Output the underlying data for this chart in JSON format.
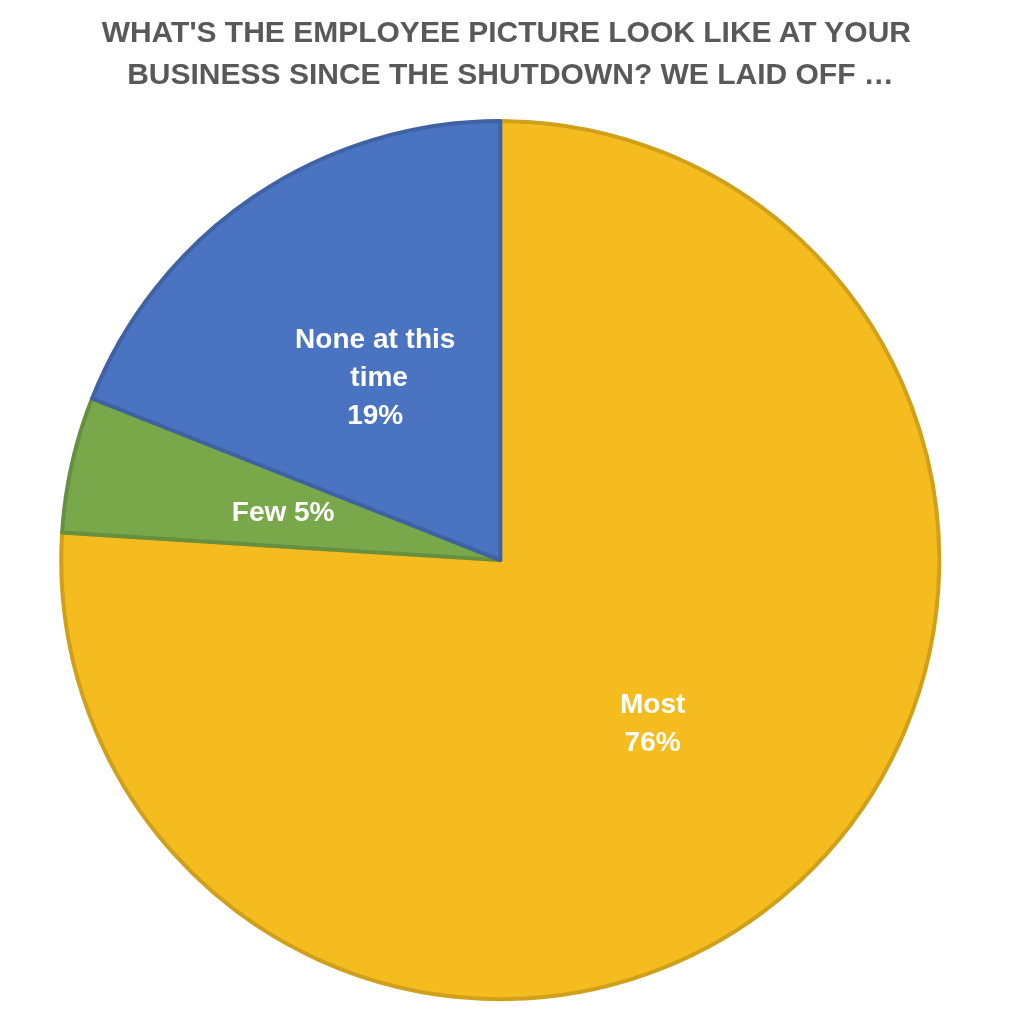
{
  "chart_data": {
    "type": "pie",
    "title": "WHAT'S THE EMPLOYEE PICTURE LOOK LIKE AT YOUR BUSINESS SINCE THE SHUTDOWN? WE LAID OFF …",
    "categories": [
      "Most",
      "Few",
      "None at this time"
    ],
    "values": [
      76,
      5,
      19
    ],
    "value_labels": [
      "76%",
      "5%",
      "19%"
    ],
    "colors": [
      "#f5bc1f",
      "#78a84a",
      "#4a73c1"
    ],
    "legend": false
  }
}
